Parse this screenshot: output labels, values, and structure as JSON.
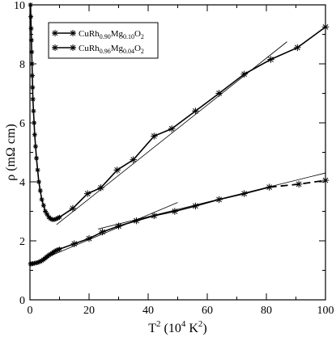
{
  "chart_data": {
    "type": "line",
    "xlabel": {
      "base": "T",
      "sup": "2",
      "rest": " (10",
      "sup2": "4",
      "unit": " K",
      "sup3": "2",
      "close": ")"
    },
    "ylabel": {
      "rho": "ρ",
      "unit": " (mΩ cm)"
    },
    "xlim": [
      0,
      100
    ],
    "ylim": [
      0,
      10
    ],
    "xticks": [
      0,
      20,
      40,
      60,
      80,
      100
    ],
    "yticks": [
      0,
      2,
      4,
      6,
      8,
      10
    ],
    "legend_position": "top-left",
    "legend": [
      {
        "series_index": 0,
        "parts": [
          {
            "t": "CuRh",
            "sub": false
          },
          {
            "t": "0.90",
            "sub": true
          },
          {
            "t": "Mg",
            "sub": false
          },
          {
            "t": "0.10",
            "sub": true
          },
          {
            "t": "O",
            "sub": false
          },
          {
            "t": "2",
            "sub": true
          }
        ]
      },
      {
        "series_index": 1,
        "parts": [
          {
            "t": "CuRh",
            "sub": false
          },
          {
            "t": "0.96",
            "sub": true
          },
          {
            "t": "Mg",
            "sub": false
          },
          {
            "t": "0.04",
            "sub": true
          },
          {
            "t": "O",
            "sub": false
          },
          {
            "t": "2",
            "sub": true
          }
        ]
      }
    ],
    "series": [
      {
        "name": "CuRh0.90Mg0.10O2",
        "color": "#000000",
        "marker": "asterisk",
        "line": "solid",
        "points": [
          [
            0.2,
            10.0
          ],
          [
            0.3,
            9.6
          ],
          [
            0.4,
            9.2
          ],
          [
            0.5,
            8.8
          ],
          [
            0.6,
            8.4
          ],
          [
            0.7,
            8.0
          ],
          [
            0.8,
            7.6
          ],
          [
            0.9,
            7.2
          ],
          [
            1.0,
            6.8
          ],
          [
            1.2,
            6.4
          ],
          [
            1.4,
            6.0
          ],
          [
            1.6,
            5.6
          ],
          [
            1.9,
            5.2
          ],
          [
            2.2,
            4.8
          ],
          [
            2.6,
            4.4
          ],
          [
            3.0,
            4.0
          ],
          [
            3.5,
            3.7
          ],
          [
            4.0,
            3.4
          ],
          [
            4.6,
            3.2
          ],
          [
            5.2,
            3.0
          ],
          [
            5.8,
            2.9
          ],
          [
            6.4,
            2.8
          ],
          [
            7.0,
            2.75
          ],
          [
            7.6,
            2.72
          ],
          [
            8.2,
            2.72
          ],
          [
            8.8,
            2.74
          ],
          [
            9.4,
            2.77
          ],
          [
            10.0,
            2.8
          ],
          [
            14.5,
            3.1
          ],
          [
            19.5,
            3.6
          ],
          [
            24.0,
            3.8
          ],
          [
            29.5,
            4.4
          ],
          [
            35.0,
            4.75
          ],
          [
            42.0,
            5.55
          ],
          [
            48.0,
            5.8
          ],
          [
            56.0,
            6.4
          ],
          [
            64.0,
            7.0
          ],
          [
            72.5,
            7.65
          ],
          [
            81.5,
            8.15
          ],
          [
            90.5,
            8.55
          ],
          [
            100,
            9.25
          ]
        ]
      },
      {
        "name": "CuRh0.96Mg0.04O2",
        "color": "#000000",
        "marker": "asterisk",
        "line": "solid-then-dashed",
        "points": [
          [
            0.2,
            1.22
          ],
          [
            0.6,
            1.22
          ],
          [
            1.0,
            1.23
          ],
          [
            1.5,
            1.24
          ],
          [
            2.0,
            1.25
          ],
          [
            2.5,
            1.26
          ],
          [
            3.0,
            1.28
          ],
          [
            3.5,
            1.3
          ],
          [
            4.0,
            1.33
          ],
          [
            4.5,
            1.36
          ],
          [
            5.0,
            1.4
          ],
          [
            5.5,
            1.44
          ],
          [
            6.0,
            1.48
          ],
          [
            6.5,
            1.52
          ],
          [
            7.0,
            1.55
          ],
          [
            7.5,
            1.58
          ],
          [
            8.0,
            1.62
          ],
          [
            8.5,
            1.65
          ],
          [
            9.0,
            1.68
          ],
          [
            9.5,
            1.7
          ],
          [
            10.0,
            1.72
          ],
          [
            15.0,
            1.9
          ],
          [
            20.0,
            2.08
          ],
          [
            24.5,
            2.3
          ],
          [
            30.0,
            2.5
          ],
          [
            36.0,
            2.68
          ],
          [
            42.0,
            2.85
          ],
          [
            49.0,
            3.0
          ],
          [
            56.0,
            3.18
          ],
          [
            64.0,
            3.4
          ],
          [
            72.5,
            3.6
          ],
          [
            81.0,
            3.82
          ],
          [
            91.0,
            3.92
          ],
          [
            100,
            4.05
          ]
        ],
        "dash_from_x": 81.0
      }
    ],
    "fit_lines": [
      {
        "x1": 9.0,
        "y1": 2.55,
        "x2": 87.0,
        "y2": 8.75
      },
      {
        "x1": 0.0,
        "y1": 1.2,
        "x2": 50.0,
        "y2": 3.3
      },
      {
        "x1": 23.0,
        "y1": 2.4,
        "x2": 100.0,
        "y2": 4.3
      }
    ]
  }
}
